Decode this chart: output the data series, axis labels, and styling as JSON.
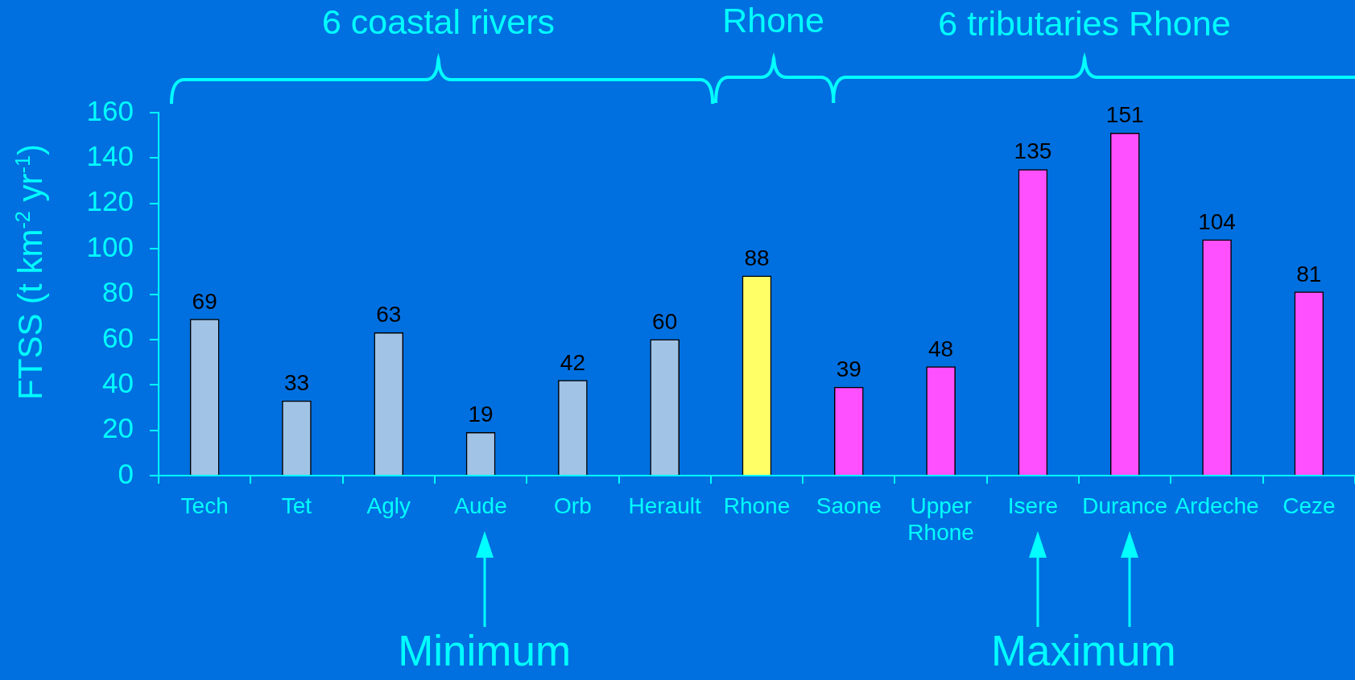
{
  "chart_data": {
    "type": "bar",
    "ylabel": "FTSS (t km$^{-2}$ yr$^{-1}$)",
    "categories": [
      "Tech",
      "Tet",
      "Agly",
      "Aude",
      "Orb",
      "Herault",
      "Rhone",
      "Saone",
      "Upper Rhone",
      "Isere",
      "Durance",
      "Ardeche",
      "Ceze"
    ],
    "values": [
      69,
      33,
      63,
      19,
      42,
      60,
      88,
      39,
      48,
      135,
      151,
      104,
      81
    ],
    "colors": [
      "#a0c3e6",
      "#a0c3e6",
      "#a0c3e6",
      "#a0c3e6",
      "#a0c3e6",
      "#a0c3e6",
      "#ffff66",
      "#ff50ff",
      "#ff50ff",
      "#ff50ff",
      "#ff50ff",
      "#ff50ff",
      "#ff50ff"
    ],
    "ylim": [
      0,
      160
    ],
    "yticks": [
      0,
      20,
      40,
      60,
      80,
      100,
      120,
      140,
      160
    ],
    "data_labels": true,
    "annotations": [
      "6 coastal rivers",
      "Rhone",
      "6 tributaries Rhone",
      "Minimum",
      "Maximum"
    ]
  }
}
